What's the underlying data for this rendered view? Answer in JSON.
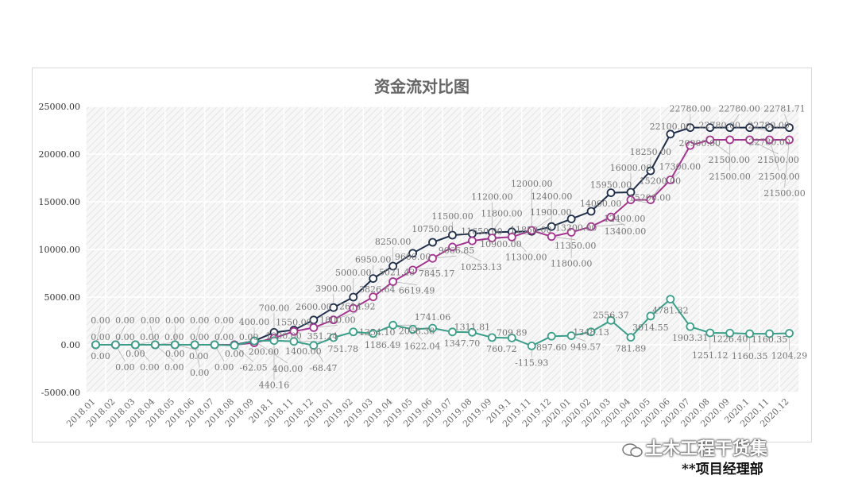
{
  "chart_data": {
    "type": "line",
    "title": "资金流对比图",
    "xlabel": "",
    "ylabel": "",
    "ylim": [
      -5000,
      25000
    ],
    "yticks": [
      "25000.00",
      "20000.00",
      "15000.00",
      "10000.00",
      "5000.00",
      "0.00",
      "-5000.00"
    ],
    "grid": true,
    "legend": "none",
    "categories": [
      "2018.01",
      "2018.02",
      "2018.03",
      "2018.04",
      "2018.05",
      "2018.06",
      "2018.07",
      "2018.08",
      "2018.09",
      "2018.1",
      "2018.11",
      "2018.12",
      "2019.01",
      "2019.02",
      "2019.03",
      "2019.04",
      "2019.05",
      "2019.06",
      "2019.07",
      "2019.08",
      "2019.09",
      "2019.1",
      "2019.11",
      "2019.12",
      "2020.01",
      "2020.02",
      "2020.03",
      "2020.04",
      "2020.05",
      "2020.06",
      "2020.07",
      "2020.08",
      "2020.09",
      "2020.1",
      "2020.11",
      "2020.12"
    ],
    "series": [
      {
        "color": "#1f2f4a",
        "values": [
          0,
          0,
          0,
          0,
          0,
          0,
          0,
          0,
          400,
          1300,
          1550,
          2600,
          3900,
          5000,
          6950,
          8250,
          9600,
          10750,
          11500,
          11650,
          11800,
          11850,
          11900,
          12400,
          13200,
          14000,
          15950,
          16000,
          18250,
          22100,
          22780,
          22780,
          22780,
          22780,
          22780,
          22781.71
        ]
      },
      {
        "color": "#a3358f",
        "values": [
          0,
          0,
          0,
          0,
          0,
          0,
          0,
          0,
          200,
          700,
          1400,
          1800,
          2614.92,
          3826.64,
          5021.43,
          6619.49,
          7845.17,
          9066.85,
          10253.13,
          10900,
          11200,
          11300,
          12000,
          11350,
          11800,
          12400,
          13400,
          15200,
          15200,
          17300,
          20900,
          21500,
          21500,
          21500,
          21500,
          21500
        ]
      },
      {
        "color": "#3a9e88",
        "values": [
          0,
          0,
          0,
          0,
          0,
          0,
          0,
          -62.05,
          400,
          440.16,
          351.24,
          -68.47,
          751.78,
          1354.1,
          1186.49,
          2058.38,
          1622.04,
          1741.06,
          1347.7,
          1311.81,
          760.72,
          709.89,
          -115.93,
          897.6,
          949.57,
          1348.13,
          2556.37,
          781.89,
          3014.55,
          4781.32,
          1903.31,
          1251.12,
          1226.4,
          1160.35,
          1160.35,
          1204.29
        ]
      }
    ]
  },
  "watermark": {
    "brand": "土木工程干货集",
    "dept": "**项目经理部"
  }
}
